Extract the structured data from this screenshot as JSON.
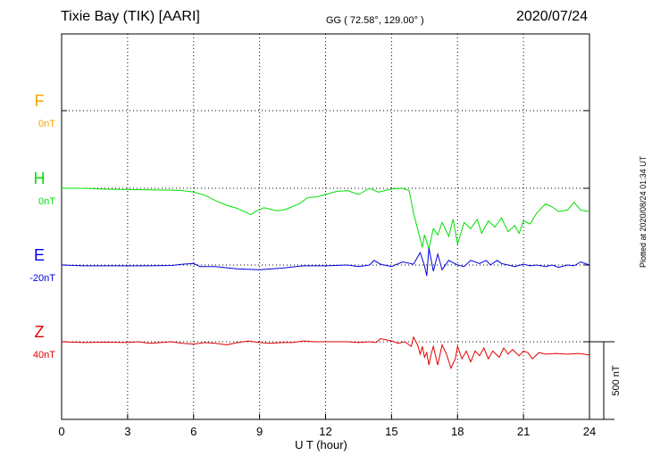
{
  "header": {
    "station": "Tixie Bay (TIK)  [AARI]",
    "coords": "GG ( 72.58°, 129.00° )",
    "date": "2020/07/24"
  },
  "side_note": "Plotted at 2020/08/24 01:34 UT",
  "chart_data": {
    "type": "line",
    "xlabel": "U T (hour)",
    "xlim": [
      0,
      24
    ],
    "x_ticks": [
      0,
      3,
      6,
      9,
      12,
      15,
      18,
      21,
      24
    ],
    "x_tick_labels": [
      "0",
      "3",
      "6",
      "9",
      "12",
      "15",
      "18",
      "21",
      "24"
    ],
    "scale_bar": {
      "label": "500 nT",
      "nT": 500
    },
    "grid": true,
    "series": [
      {
        "name": "F",
        "baseline_label": "0nT",
        "color": "#f5a000",
        "points": []
      },
      {
        "name": "H",
        "baseline_label": "0nT",
        "color": "#00e000",
        "points": [
          [
            0,
            0
          ],
          [
            1,
            0
          ],
          [
            2,
            -6
          ],
          [
            3,
            -8
          ],
          [
            4,
            -10
          ],
          [
            5,
            -12
          ],
          [
            5.5,
            -15
          ],
          [
            6,
            -25
          ],
          [
            6.5,
            -45
          ],
          [
            7,
            -80
          ],
          [
            7.5,
            -110
          ],
          [
            8,
            -130
          ],
          [
            8.3,
            -150
          ],
          [
            8.6,
            -170
          ],
          [
            8.8,
            -150
          ],
          [
            9.2,
            -125
          ],
          [
            9.8,
            -145
          ],
          [
            10.2,
            -135
          ],
          [
            10.8,
            -100
          ],
          [
            11.2,
            -60
          ],
          [
            11.6,
            -55
          ],
          [
            12,
            -40
          ],
          [
            12.5,
            -20
          ],
          [
            13,
            -15
          ],
          [
            13.5,
            -40
          ],
          [
            14,
            0
          ],
          [
            14.4,
            -25
          ],
          [
            15,
            -5
          ],
          [
            15.5,
            0
          ],
          [
            15.8,
            -15
          ],
          [
            16,
            -160
          ],
          [
            16.2,
            -270
          ],
          [
            16.4,
            -380
          ],
          [
            16.5,
            -300
          ],
          [
            16.7,
            -390
          ],
          [
            16.9,
            -260
          ],
          [
            17.1,
            -300
          ],
          [
            17.3,
            -220
          ],
          [
            17.6,
            -310
          ],
          [
            17.8,
            -200
          ],
          [
            18,
            -360
          ],
          [
            18.3,
            -220
          ],
          [
            18.6,
            -260
          ],
          [
            18.9,
            -200
          ],
          [
            19.1,
            -290
          ],
          [
            19.4,
            -210
          ],
          [
            19.7,
            -250
          ],
          [
            20,
            -190
          ],
          [
            20.3,
            -280
          ],
          [
            20.6,
            -240
          ],
          [
            20.8,
            -290
          ],
          [
            21,
            -210
          ],
          [
            21.3,
            -230
          ],
          [
            21.6,
            -160
          ],
          [
            22,
            -100
          ],
          [
            22.3,
            -120
          ],
          [
            22.6,
            -150
          ],
          [
            23,
            -140
          ],
          [
            23.3,
            -90
          ],
          [
            23.6,
            -140
          ],
          [
            24,
            -150
          ]
        ]
      },
      {
        "name": "E",
        "baseline_label": "-20nT",
        "color": "#0000e0",
        "points": [
          [
            0,
            0
          ],
          [
            1,
            -5
          ],
          [
            2,
            -5
          ],
          [
            3,
            -5
          ],
          [
            4,
            -5
          ],
          [
            5,
            -3
          ],
          [
            5.5,
            5
          ],
          [
            6,
            10
          ],
          [
            6.3,
            -10
          ],
          [
            7,
            -10
          ],
          [
            8,
            -25
          ],
          [
            9,
            -30
          ],
          [
            10,
            -20
          ],
          [
            11,
            -5
          ],
          [
            12,
            -5
          ],
          [
            13,
            0
          ],
          [
            13.5,
            -10
          ],
          [
            14,
            0
          ],
          [
            14.2,
            30
          ],
          [
            14.5,
            5
          ],
          [
            15,
            -10
          ],
          [
            15.5,
            20
          ],
          [
            16,
            5
          ],
          [
            16.3,
            80
          ],
          [
            16.5,
            -5
          ],
          [
            16.6,
            -70
          ],
          [
            16.7,
            110
          ],
          [
            16.9,
            -40
          ],
          [
            17.1,
            70
          ],
          [
            17.3,
            -30
          ],
          [
            17.6,
            30
          ],
          [
            18,
            0
          ],
          [
            18.3,
            -10
          ],
          [
            18.6,
            30
          ],
          [
            19,
            10
          ],
          [
            19.3,
            30
          ],
          [
            19.5,
            0
          ],
          [
            19.8,
            30
          ],
          [
            20,
            10
          ],
          [
            20.3,
            0
          ],
          [
            20.6,
            -10
          ],
          [
            21,
            5
          ],
          [
            21.3,
            -5
          ],
          [
            21.6,
            0
          ],
          [
            22,
            -10
          ],
          [
            22.3,
            0
          ],
          [
            22.6,
            -15
          ],
          [
            23,
            0
          ],
          [
            23.3,
            -5
          ],
          [
            23.6,
            20
          ],
          [
            24,
            0
          ]
        ]
      },
      {
        "name": "Z",
        "baseline_label": "40nT",
        "color": "#e00000",
        "points": [
          [
            0,
            0
          ],
          [
            1,
            -5
          ],
          [
            2,
            -3
          ],
          [
            3,
            -5
          ],
          [
            3.5,
            0
          ],
          [
            4,
            -10
          ],
          [
            4.5,
            -5
          ],
          [
            5,
            0
          ],
          [
            5.5,
            -10
          ],
          [
            6,
            -15
          ],
          [
            6.5,
            -5
          ],
          [
            7,
            -10
          ],
          [
            7.5,
            -20
          ],
          [
            8,
            -5
          ],
          [
            8.5,
            5
          ],
          [
            9,
            -5
          ],
          [
            9.5,
            -10
          ],
          [
            10,
            -5
          ],
          [
            10.5,
            -5
          ],
          [
            11,
            5
          ],
          [
            11.5,
            0
          ],
          [
            12,
            0
          ],
          [
            13,
            0
          ],
          [
            13.5,
            -5
          ],
          [
            14,
            0
          ],
          [
            14.3,
            -5
          ],
          [
            14.5,
            20
          ],
          [
            15,
            5
          ],
          [
            15.3,
            -10
          ],
          [
            15.6,
            0
          ],
          [
            15.9,
            -30
          ],
          [
            16,
            30
          ],
          [
            16.2,
            -25
          ],
          [
            16.3,
            -80
          ],
          [
            16.4,
            -30
          ],
          [
            16.5,
            -100
          ],
          [
            16.6,
            -70
          ],
          [
            16.7,
            -150
          ],
          [
            16.8,
            -80
          ],
          [
            16.9,
            -30
          ],
          [
            17.1,
            -150
          ],
          [
            17.3,
            -20
          ],
          [
            17.5,
            -80
          ],
          [
            17.7,
            -170
          ],
          [
            17.9,
            -110
          ],
          [
            18,
            -30
          ],
          [
            18.2,
            -110
          ],
          [
            18.4,
            -60
          ],
          [
            18.6,
            -130
          ],
          [
            18.8,
            -60
          ],
          [
            19,
            -90
          ],
          [
            19.2,
            -40
          ],
          [
            19.4,
            -110
          ],
          [
            19.6,
            -60
          ],
          [
            19.9,
            -100
          ],
          [
            20.1,
            -40
          ],
          [
            20.3,
            -80
          ],
          [
            20.5,
            -50
          ],
          [
            20.8,
            -90
          ],
          [
            21,
            -60
          ],
          [
            21.2,
            -70
          ],
          [
            21.4,
            -110
          ],
          [
            21.7,
            -70
          ],
          [
            22,
            -80
          ],
          [
            22.5,
            -75
          ],
          [
            23,
            -80
          ],
          [
            23.5,
            -75
          ],
          [
            24,
            -85
          ]
        ]
      }
    ]
  }
}
